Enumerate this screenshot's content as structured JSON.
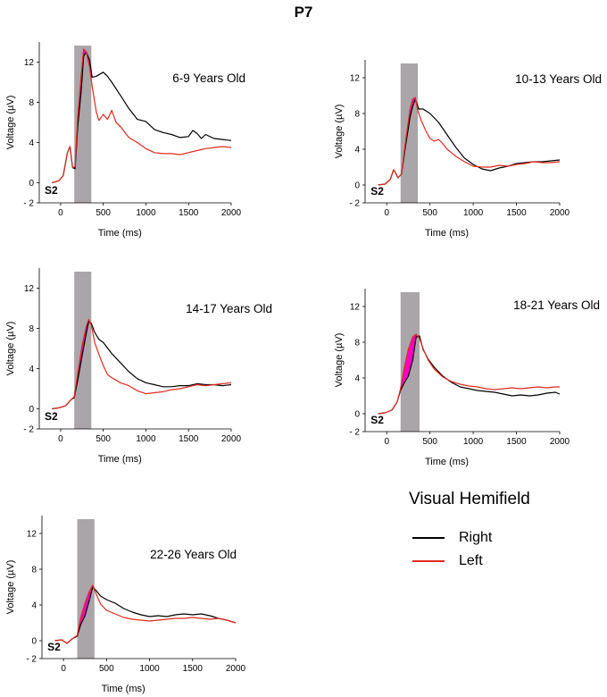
{
  "title": "P7",
  "colors": {
    "right": "#000000",
    "left": "#e02a1e",
    "shade": "#aaa5a9",
    "highlight": "#ff00c8",
    "highlight_dark": "#9b1fa8"
  },
  "legend": {
    "title": "Visual Hemifield",
    "items": [
      {
        "label": "Right",
        "color": "#000000"
      },
      {
        "label": "Left",
        "color": "#e02a1e"
      }
    ]
  },
  "chart_data": [
    {
      "type": "line",
      "title": "6-9 Years Old",
      "xlabel": "Time   (ms)",
      "ylabel": "Voltage  (µV)",
      "xlim": [
        -250,
        2000
      ],
      "ylim": [
        -2,
        14
      ],
      "xticks": [
        "0",
        "500",
        "1000",
        "1500",
        "2000"
      ],
      "yticks": [
        "- 2",
        "0",
        "4",
        "8",
        "12"
      ],
      "stimulus_label": "S2",
      "window": [
        160,
        360
      ],
      "series": [
        {
          "name": "Right",
          "x": [
            -100,
            -20,
            30,
            80,
            110,
            140,
            170,
            200,
            240,
            270,
            300,
            340,
            370,
            420,
            500,
            550,
            600,
            700,
            800,
            900,
            1000,
            1100,
            1200,
            1300,
            1400,
            1500,
            1550,
            1600,
            1650,
            1700,
            1800,
            1900,
            2000
          ],
          "y": [
            0,
            0.2,
            0.7,
            3.0,
            3.6,
            1.5,
            1.4,
            5.5,
            9.0,
            12.6,
            13.0,
            12.2,
            10.5,
            10.6,
            11.0,
            10.6,
            10.0,
            8.7,
            7.4,
            6.3,
            6.1,
            5.3,
            5.0,
            4.8,
            4.5,
            4.6,
            5.2,
            4.9,
            4.4,
            4.8,
            4.4,
            4.3,
            4.2
          ]
        },
        {
          "name": "Left",
          "x": [
            -100,
            -20,
            30,
            80,
            110,
            140,
            170,
            200,
            240,
            270,
            300,
            340,
            370,
            420,
            450,
            500,
            550,
            600,
            650,
            700,
            800,
            900,
            1000,
            1100,
            1200,
            1300,
            1400,
            1500,
            1600,
            1700,
            1800,
            1900,
            2000
          ],
          "y": [
            0,
            0.2,
            0.7,
            3.0,
            3.6,
            1.5,
            1.6,
            6.5,
            10.5,
            13.3,
            13.0,
            11.5,
            9.6,
            7.0,
            6.2,
            6.8,
            6.3,
            7.2,
            6.0,
            5.6,
            4.5,
            4.0,
            3.4,
            3.0,
            2.9,
            2.9,
            2.8,
            3.0,
            3.2,
            3.4,
            3.5,
            3.6,
            3.5
          ]
        }
      ]
    },
    {
      "type": "line",
      "title": "10-13 Years Old",
      "xlabel": "Time   (ms)",
      "ylabel": "Voltage  (µV)",
      "xlim": [
        -250,
        2000
      ],
      "ylim": [
        -2,
        14
      ],
      "xticks": [
        "0",
        "500",
        "1000",
        "1500",
        "2000"
      ],
      "yticks": [
        "- 2",
        "0",
        "4",
        "8",
        "12"
      ],
      "stimulus_label": "S2",
      "window": [
        160,
        360
      ],
      "series": [
        {
          "name": "Right",
          "x": [
            -100,
            -20,
            40,
            80,
            100,
            130,
            170,
            220,
            270,
            300,
            330,
            370,
            420,
            500,
            600,
            700,
            800,
            900,
            1000,
            1100,
            1200,
            1300,
            1400,
            1500,
            1600,
            1700,
            1800,
            1900,
            2000
          ],
          "y": [
            0,
            0.1,
            0.6,
            1.7,
            1.4,
            0.8,
            1.2,
            4.5,
            7.6,
            8.8,
            9.6,
            8.5,
            8.5,
            8.0,
            7.0,
            5.6,
            4.2,
            3.0,
            2.3,
            1.8,
            1.6,
            1.9,
            2.1,
            2.4,
            2.5,
            2.6,
            2.6,
            2.7,
            2.8
          ]
        },
        {
          "name": "Left",
          "x": [
            -100,
            -20,
            40,
            80,
            100,
            130,
            170,
            220,
            270,
            300,
            330,
            360,
            400,
            450,
            500,
            550,
            600,
            650,
            700,
            800,
            900,
            1000,
            1100,
            1200,
            1300,
            1400,
            1500,
            1600,
            1700,
            1800,
            1900,
            2000
          ],
          "y": [
            0,
            0.1,
            0.6,
            1.7,
            1.4,
            0.8,
            1.2,
            5.0,
            8.5,
            9.6,
            9.8,
            8.3,
            7.2,
            6.1,
            5.2,
            4.9,
            5.1,
            4.6,
            4.0,
            3.2,
            2.6,
            2.1,
            2.0,
            2.0,
            2.2,
            2.1,
            2.3,
            2.4,
            2.6,
            2.5,
            2.5,
            2.6
          ]
        }
      ]
    },
    {
      "type": "line",
      "title": "14-17 Years Old",
      "xlabel": "Time   (ms)",
      "ylabel": "Voltage  (µV)",
      "xlim": [
        -250,
        2000
      ],
      "ylim": [
        -2,
        14
      ],
      "xticks": [
        "0",
        "500",
        "1000",
        "1500",
        "2000"
      ],
      "yticks": [
        "- 2",
        "0",
        "4",
        "8",
        "12"
      ],
      "stimulus_label": "S2",
      "window": [
        160,
        360
      ],
      "series": [
        {
          "name": "Right",
          "x": [
            -100,
            -20,
            60,
            120,
            160,
            200,
            250,
            300,
            330,
            360,
            400,
            450,
            500,
            600,
            700,
            800,
            900,
            1000,
            1100,
            1200,
            1300,
            1400,
            1500,
            1600,
            1700,
            1800,
            1900,
            2000
          ],
          "y": [
            0,
            0.1,
            0.3,
            0.9,
            1.1,
            2.8,
            5.2,
            7.5,
            8.7,
            8.5,
            7.6,
            6.9,
            6.6,
            5.5,
            4.6,
            3.7,
            3.0,
            2.6,
            2.4,
            2.2,
            2.2,
            2.3,
            2.3,
            2.5,
            2.4,
            2.4,
            2.3,
            2.4
          ]
        },
        {
          "name": "Left",
          "x": [
            -100,
            -20,
            60,
            120,
            160,
            200,
            250,
            300,
            330,
            360,
            400,
            450,
            500,
            550,
            600,
            700,
            800,
            900,
            1000,
            1100,
            1200,
            1300,
            1400,
            1500,
            1600,
            1700,
            1800,
            1900,
            2000
          ],
          "y": [
            0,
            0.1,
            0.3,
            0.9,
            1.2,
            3.5,
            6.2,
            8.2,
            8.9,
            8.3,
            6.6,
            5.4,
            4.3,
            3.4,
            3.1,
            2.6,
            2.3,
            1.8,
            1.5,
            1.6,
            1.7,
            1.9,
            2.0,
            2.2,
            2.4,
            2.3,
            2.4,
            2.5,
            2.6
          ]
        }
      ]
    },
    {
      "type": "line",
      "title": "18-21 Years Old",
      "xlabel": "Time   (ms)",
      "ylabel": "Voltage  (µV)",
      "xlim": [
        -250,
        2000
      ],
      "ylim": [
        -2,
        14
      ],
      "xticks": [
        "0",
        "500",
        "1000",
        "1500",
        "2000"
      ],
      "yticks": [
        "- 2",
        "0",
        "4",
        "8",
        "12"
      ],
      "stimulus_label": "S2",
      "window": [
        160,
        380
      ],
      "series": [
        {
          "name": "Right",
          "x": [
            -100,
            -20,
            60,
            120,
            160,
            200,
            250,
            300,
            340,
            380,
            420,
            480,
            550,
            650,
            750,
            850,
            950,
            1050,
            1150,
            1250,
            1350,
            1450,
            1550,
            1650,
            1750,
            1850,
            1950,
            2000
          ],
          "y": [
            0,
            0.1,
            0.4,
            1.3,
            2.6,
            3.4,
            4.2,
            6.0,
            8.6,
            8.7,
            7.2,
            6.1,
            5.2,
            4.2,
            3.5,
            3.0,
            2.8,
            2.6,
            2.5,
            2.4,
            2.2,
            2.0,
            2.1,
            2.0,
            2.1,
            2.3,
            2.4,
            2.2
          ]
        },
        {
          "name": "Left",
          "x": [
            -100,
            -20,
            60,
            120,
            160,
            200,
            250,
            300,
            340,
            380,
            420,
            480,
            550,
            650,
            750,
            850,
            950,
            1050,
            1150,
            1250,
            1350,
            1450,
            1550,
            1650,
            1750,
            1850,
            1950,
            2000
          ],
          "y": [
            0,
            0.1,
            0.4,
            1.3,
            2.8,
            5.0,
            7.2,
            8.6,
            8.9,
            8.4,
            7.3,
            6.0,
            5.0,
            4.1,
            3.6,
            3.3,
            3.1,
            3.0,
            2.8,
            2.7,
            2.8,
            2.9,
            2.8,
            2.9,
            3.0,
            2.9,
            3.0,
            3.0
          ]
        }
      ]
    },
    {
      "type": "line",
      "title": "22-26 Years Old",
      "xlabel": "Time   (ms)",
      "ylabel": "Voltage  (µV)",
      "xlim": [
        -250,
        2000
      ],
      "ylim": [
        -2,
        14
      ],
      "xticks": [
        "0",
        "500",
        "1000",
        "1500",
        "2000"
      ],
      "yticks": [
        "- 2",
        "0",
        "4",
        "8",
        "12"
      ],
      "stimulus_label": "S2",
      "window": [
        160,
        360
      ],
      "series": [
        {
          "name": "Right",
          "x": [
            -100,
            -20,
            40,
            100,
            160,
            200,
            250,
            300,
            340,
            380,
            430,
            500,
            600,
            700,
            800,
            900,
            1000,
            1100,
            1200,
            1300,
            1400,
            1500,
            1600,
            1700,
            1800,
            1900,
            2000
          ],
          "y": [
            0,
            0.1,
            -0.3,
            0.2,
            0.5,
            1.8,
            2.8,
            4.5,
            6.0,
            5.6,
            5.0,
            4.6,
            4.2,
            3.6,
            3.2,
            2.9,
            2.7,
            2.8,
            2.7,
            2.9,
            3.0,
            2.9,
            3.0,
            2.8,
            2.5,
            2.3,
            2.0
          ]
        },
        {
          "name": "Left",
          "x": [
            -100,
            -20,
            40,
            100,
            160,
            200,
            250,
            300,
            340,
            380,
            430,
            500,
            600,
            700,
            800,
            900,
            1000,
            1100,
            1200,
            1300,
            1400,
            1500,
            1600,
            1700,
            1800,
            1900,
            2000
          ],
          "y": [
            0,
            0.1,
            -0.3,
            0.2,
            0.6,
            2.6,
            4.2,
            5.5,
            6.2,
            5.2,
            4.1,
            3.4,
            3.0,
            2.6,
            2.4,
            2.3,
            2.2,
            2.3,
            2.4,
            2.5,
            2.5,
            2.6,
            2.5,
            2.4,
            2.5,
            2.3,
            2.0
          ]
        }
      ]
    }
  ]
}
